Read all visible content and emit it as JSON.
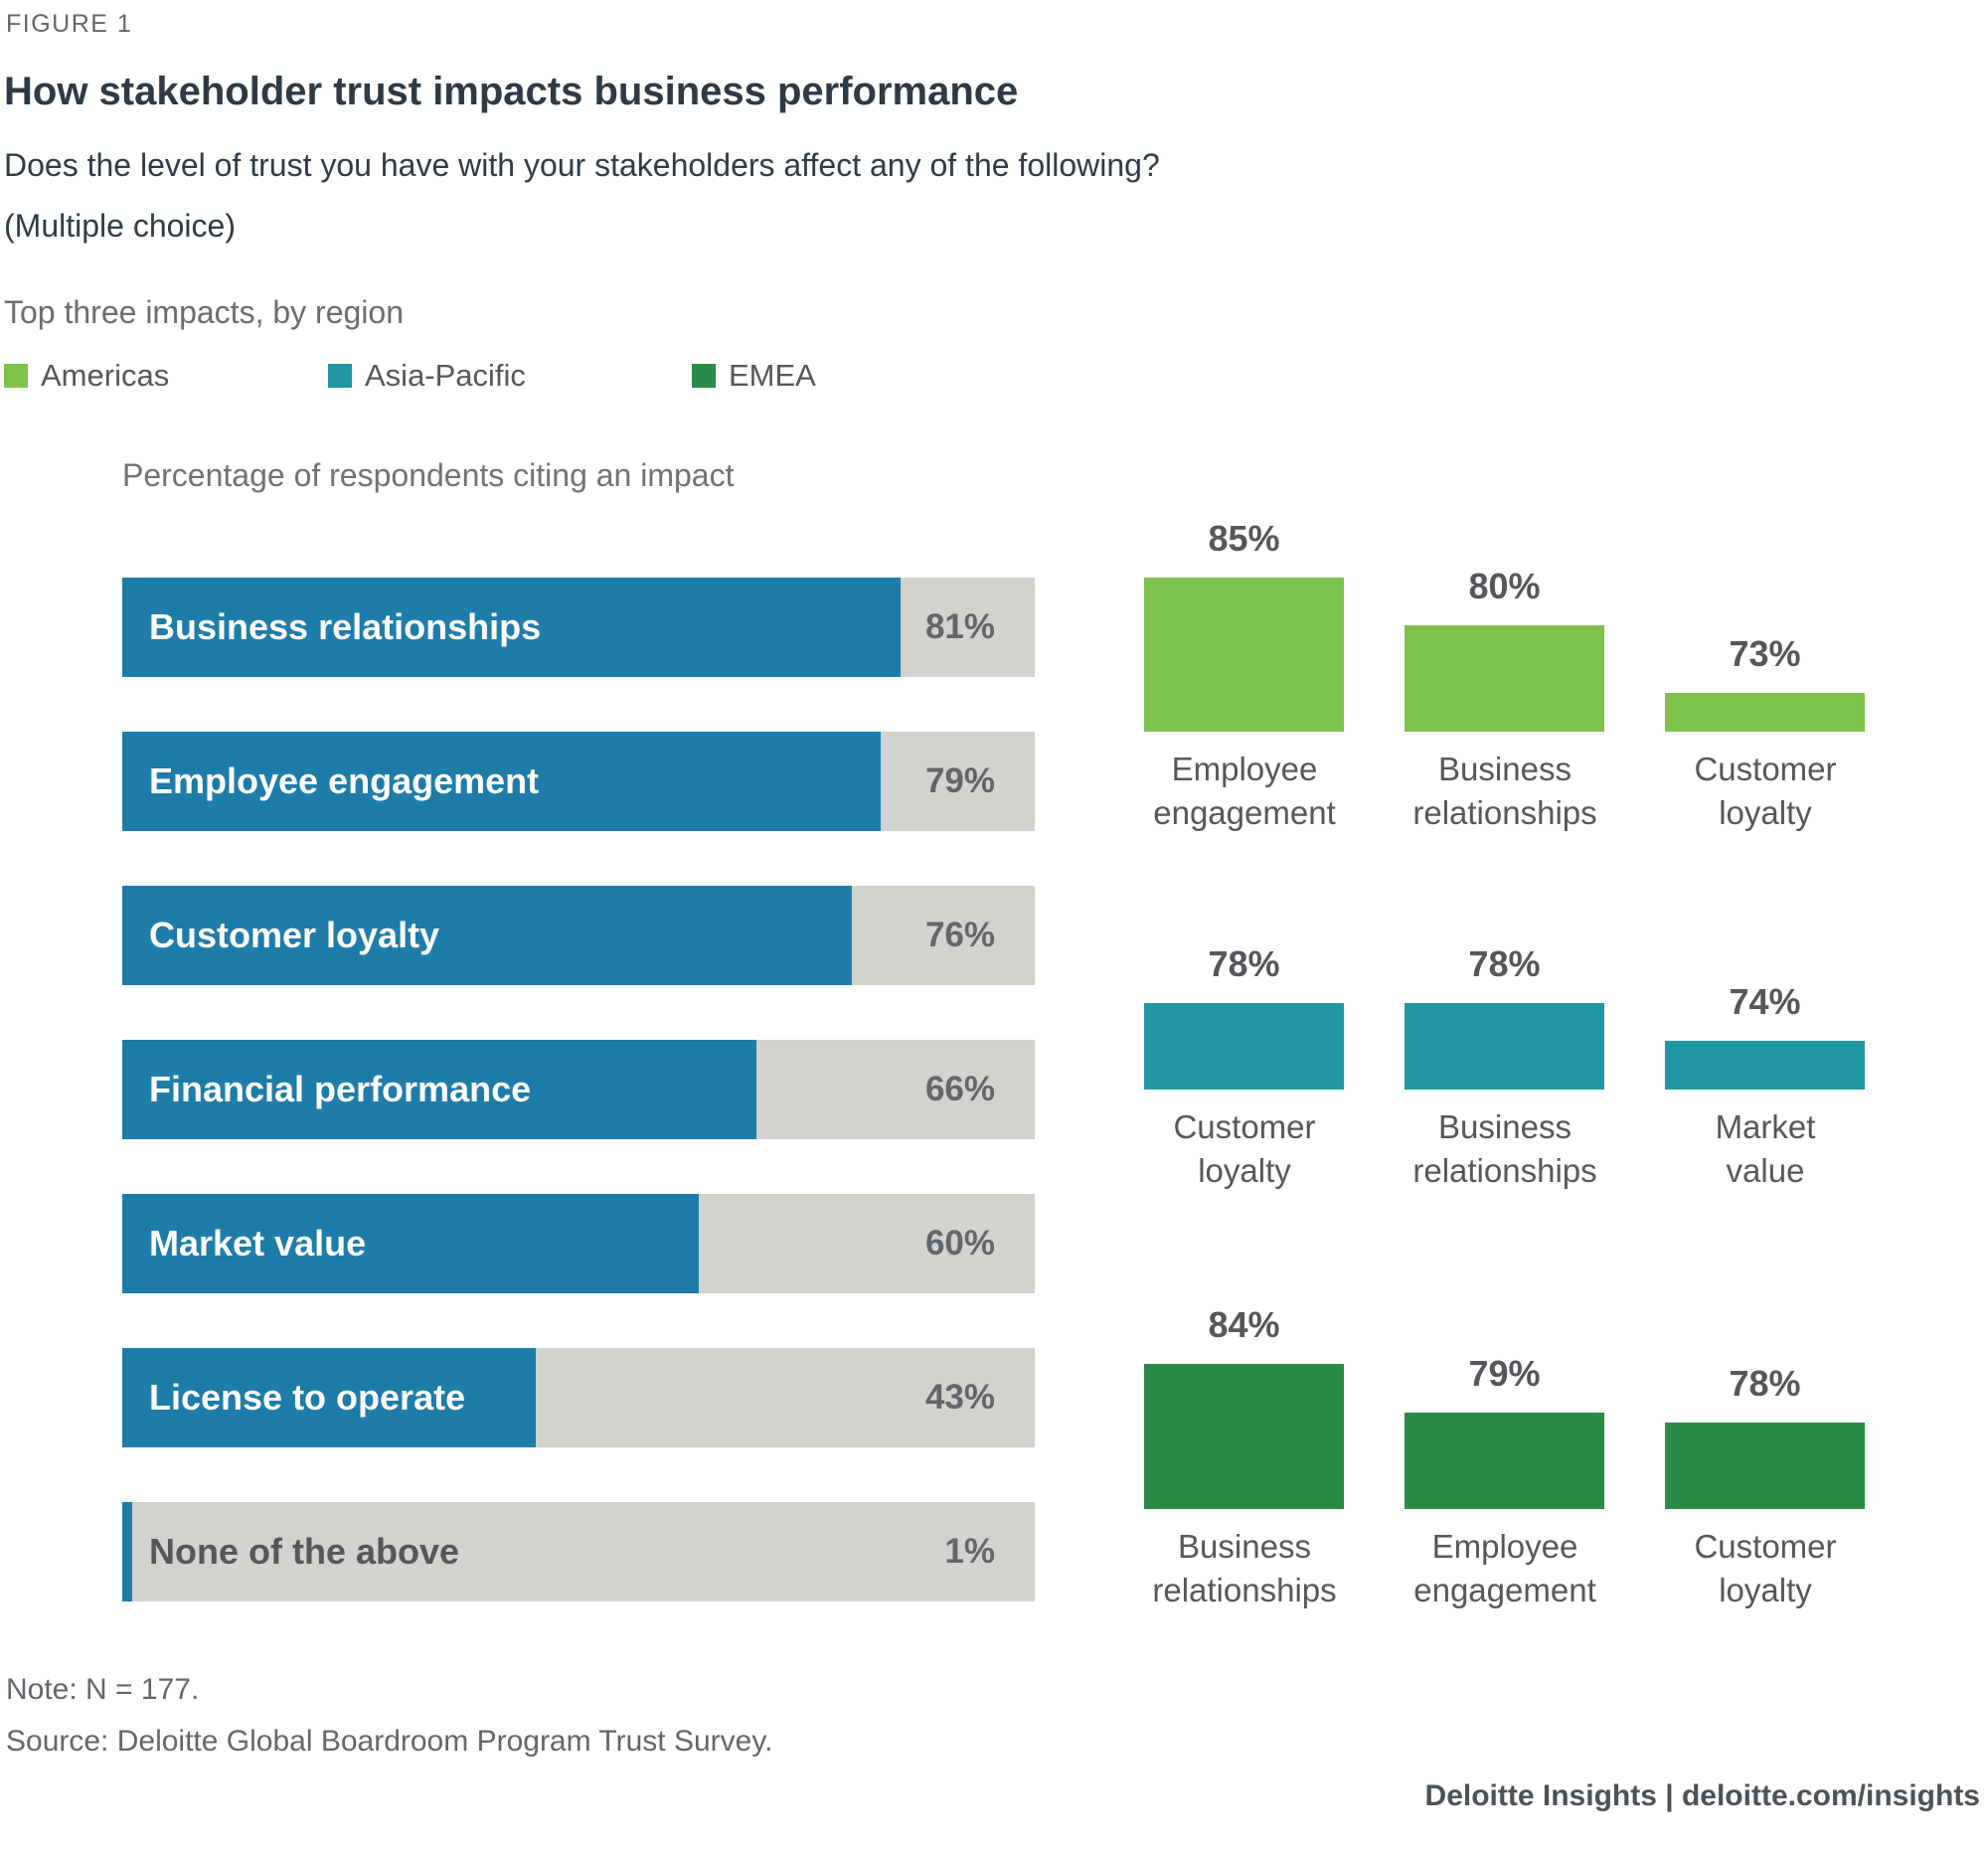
{
  "figure_label": "FIGURE 1",
  "title": "How stakeholder trust impacts business performance",
  "subtitle": "Does the level of trust you have with your stakeholders affect any of the following?",
  "subtitle2": "(Multiple choice)",
  "section_label": "Top three impacts, by region",
  "legend": [
    {
      "label": "Americas",
      "color": "#7cc24b"
    },
    {
      "label": "Asia-Pacific",
      "color": "#2097a2"
    },
    {
      "label": "EMEA",
      "color": "#2a8b46"
    }
  ],
  "notes": {
    "note": "Note: N = 177.",
    "source": "Source: Deloitte Global Boardroom Program Trust Survey.",
    "brand": "Deloitte Insights | deloitte.com/insights"
  },
  "chart_data": [
    {
      "type": "bar",
      "orientation": "horizontal",
      "title": "Percentage of respondents citing an impact",
      "categories": [
        "Business relationships",
        "Employee engagement",
        "Customer loyalty",
        "Financial performance",
        "Market value",
        "License to operate",
        "None of the above"
      ],
      "values": [
        81,
        79,
        76,
        66,
        60,
        43,
        1
      ],
      "value_labels": [
        "81%",
        "79%",
        "76%",
        "66%",
        "60%",
        "43%",
        "1%"
      ],
      "unit": "%",
      "xlim": [
        0,
        95
      ],
      "bar_color": "#1e7ca9",
      "track_color": "#d2d2cf",
      "grid": false
    },
    {
      "type": "bar",
      "orientation": "vertical",
      "title": "Top three impacts, by region",
      "unit": "%",
      "value_axis_baseline": 69,
      "groups": [
        {
          "region": "Americas",
          "color": "#7cc24b",
          "categories": [
            "Employee engagement",
            "Business relationships",
            "Customer loyalty"
          ],
          "values": [
            85,
            80,
            73
          ],
          "value_labels": [
            "85%",
            "80%",
            "73%"
          ]
        },
        {
          "region": "Asia-Pacific",
          "color": "#2097a2",
          "categories": [
            "Customer loyalty",
            "Business relationships",
            "Market value"
          ],
          "values": [
            78,
            78,
            74
          ],
          "value_labels": [
            "78%",
            "78%",
            "74%"
          ]
        },
        {
          "region": "EMEA",
          "color": "#2a8b46",
          "categories": [
            "Business relationships",
            "Employee engagement",
            "Customer loyalty"
          ],
          "values": [
            84,
            79,
            78
          ],
          "value_labels": [
            "84%",
            "79%",
            "78%"
          ]
        }
      ]
    }
  ]
}
